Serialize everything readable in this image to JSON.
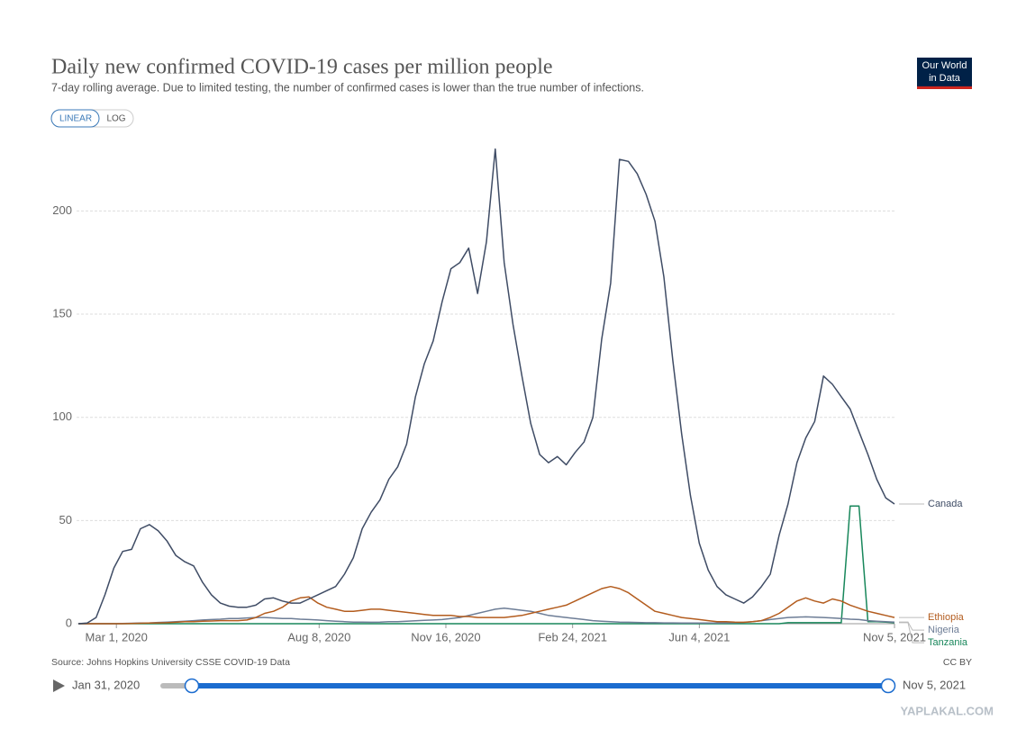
{
  "chart_data": {
    "type": "line",
    "title": "Daily new confirmed COVID-19 cases per million people",
    "subtitle": "7-day rolling average. Due to limited testing, the number of confirmed cases is lower than the true number of infections.",
    "scale_buttons": [
      "LINEAR",
      "LOG"
    ],
    "active_scale": "LINEAR",
    "logo": [
      "Our World",
      "in Data"
    ],
    "source": "Source: Johns Hopkins University CSSE COVID-19 Data",
    "license": "CC BY",
    "time_range": [
      "Jan 31, 2020",
      "Nov 5, 2021"
    ],
    "watermark": "YAPLAKAL.COM",
    "grid": true,
    "legend": "right",
    "xlim": [
      "2020-01-31",
      "2021-11-05"
    ],
    "xticks": [
      {
        "value": "2020-03-01",
        "label": "Mar 1, 2020"
      },
      {
        "value": "2020-08-08",
        "label": "Aug 8, 2020"
      },
      {
        "value": "2020-11-16",
        "label": "Nov 16, 2020"
      },
      {
        "value": "2021-02-24",
        "label": "Feb 24, 2021"
      },
      {
        "value": "2021-06-04",
        "label": "Jun 4, 2021"
      },
      {
        "value": "2021-11-05",
        "label": "Nov 5, 2021"
      }
    ],
    "ylim": [
      0,
      232
    ],
    "yticks": [
      0,
      50,
      100,
      150,
      200
    ],
    "x": [
      "2020-01-31",
      "2020-02-07",
      "2020-02-14",
      "2020-02-21",
      "2020-02-28",
      "2020-03-06",
      "2020-03-13",
      "2020-03-20",
      "2020-03-27",
      "2020-04-03",
      "2020-04-10",
      "2020-04-17",
      "2020-04-24",
      "2020-05-01",
      "2020-05-08",
      "2020-05-15",
      "2020-05-22",
      "2020-05-29",
      "2020-06-05",
      "2020-06-12",
      "2020-06-19",
      "2020-06-26",
      "2020-07-03",
      "2020-07-10",
      "2020-07-17",
      "2020-07-24",
      "2020-07-31",
      "2020-08-07",
      "2020-08-14",
      "2020-08-21",
      "2020-08-28",
      "2020-09-04",
      "2020-09-11",
      "2020-09-18",
      "2020-09-25",
      "2020-10-02",
      "2020-10-09",
      "2020-10-16",
      "2020-10-23",
      "2020-10-30",
      "2020-11-06",
      "2020-11-13",
      "2020-11-20",
      "2020-11-27",
      "2020-12-04",
      "2020-12-11",
      "2020-12-18",
      "2020-12-25",
      "2021-01-01",
      "2021-01-08",
      "2021-01-15",
      "2021-01-22",
      "2021-01-29",
      "2021-02-05",
      "2021-02-12",
      "2021-02-19",
      "2021-02-26",
      "2021-03-05",
      "2021-03-12",
      "2021-03-19",
      "2021-03-26",
      "2021-04-02",
      "2021-04-09",
      "2021-04-16",
      "2021-04-23",
      "2021-04-30",
      "2021-05-07",
      "2021-05-14",
      "2021-05-21",
      "2021-05-28",
      "2021-06-04",
      "2021-06-11",
      "2021-06-18",
      "2021-06-25",
      "2021-07-02",
      "2021-07-09",
      "2021-07-16",
      "2021-07-23",
      "2021-07-30",
      "2021-08-06",
      "2021-08-13",
      "2021-08-20",
      "2021-08-27",
      "2021-09-03",
      "2021-09-10",
      "2021-09-17",
      "2021-09-24",
      "2021-10-01",
      "2021-10-08",
      "2021-10-15",
      "2021-10-22",
      "2021-10-29",
      "2021-11-05"
    ],
    "series": [
      {
        "name": "Canada",
        "color": "#3f4c65",
        "values": [
          0,
          0.3,
          3,
          14,
          27,
          35,
          36,
          46,
          48,
          45,
          40,
          33,
          30,
          28,
          20,
          14,
          10,
          8.5,
          8,
          8,
          9,
          12,
          12.5,
          11,
          10,
          10,
          12,
          14,
          16,
          18,
          24,
          32,
          46,
          54,
          60,
          70,
          76,
          87,
          110,
          126,
          137,
          156,
          172,
          175,
          182,
          160,
          185,
          230,
          175,
          145,
          120,
          97,
          82,
          78,
          81,
          77,
          83,
          88,
          100,
          138,
          165,
          225,
          224,
          218,
          208,
          195,
          168,
          128,
          92,
          62,
          39,
          26,
          18,
          14,
          12,
          10,
          13,
          18,
          24,
          43,
          58,
          78,
          90,
          98,
          120,
          116,
          110,
          104,
          93,
          82,
          70,
          61,
          58
        ]
      },
      {
        "name": "Ethiopia",
        "color": "#b35c1e",
        "values": [
          0,
          0,
          0,
          0,
          0,
          0,
          0.1,
          0.2,
          0.3,
          0.4,
          0.5,
          0.7,
          1,
          1,
          1.2,
          1.3,
          1.5,
          1.5,
          1.5,
          1.8,
          3,
          5,
          6,
          8,
          11,
          12.5,
          13,
          10,
          8,
          7,
          6,
          6,
          6.5,
          7,
          7,
          6.5,
          6,
          5.5,
          5,
          4.5,
          4,
          4,
          4,
          3.5,
          3.5,
          3,
          3,
          3,
          3,
          3.5,
          4,
          5,
          6,
          7,
          8,
          9,
          11,
          13,
          15,
          17,
          18,
          17,
          15,
          12,
          9,
          6,
          5,
          4,
          3,
          2.5,
          2,
          1.5,
          1,
          1,
          0.8,
          0.7,
          1,
          1.5,
          3,
          5,
          8,
          11,
          12.5,
          11,
          10,
          12,
          11,
          9,
          7.5,
          6,
          5,
          4,
          3
        ]
      },
      {
        "name": "Nigeria",
        "color": "#6d7d96",
        "values": [
          0,
          0,
          0,
          0,
          0,
          0.1,
          0.2,
          0.3,
          0.4,
          0.6,
          0.8,
          1,
          1.2,
          1.5,
          1.8,
          2,
          2.2,
          2.5,
          2.5,
          2.8,
          3,
          3,
          2.8,
          2.5,
          2.5,
          2.2,
          2,
          1.8,
          1.5,
          1.2,
          1,
          0.8,
          0.8,
          0.7,
          0.8,
          1,
          1,
          1.2,
          1.4,
          1.6,
          1.8,
          2,
          2.5,
          3,
          4,
          5,
          6,
          7,
          7.5,
          7,
          6.5,
          6,
          5,
          4,
          3.5,
          3,
          2.5,
          2,
          1.5,
          1.2,
          1,
          0.8,
          0.7,
          0.6,
          0.5,
          0.5,
          0.4,
          0.4,
          0.3,
          0.3,
          0.3,
          0.3,
          0.3,
          0.4,
          0.5,
          0.6,
          1,
          1.5,
          2,
          2.5,
          3,
          3.2,
          3.3,
          3.2,
          3,
          2.8,
          2.5,
          2.2,
          2,
          1.5,
          1.2,
          1,
          0.8
        ]
      },
      {
        "name": "Tanzania",
        "color": "#18875b",
        "values": [
          0,
          0,
          0,
          0,
          0,
          0,
          0,
          0,
          0,
          0,
          0,
          0,
          0,
          0,
          0,
          0,
          0,
          0,
          0,
          0,
          0,
          0,
          0,
          0,
          0,
          0,
          0,
          0,
          0,
          0,
          0,
          0,
          0,
          0,
          0,
          0,
          0,
          0,
          0,
          0,
          0,
          0,
          0,
          0,
          0,
          0,
          0,
          0,
          0,
          0,
          0,
          0,
          0,
          0,
          0,
          0,
          0,
          0,
          0,
          0,
          0,
          0,
          0,
          0,
          0,
          0,
          0,
          0,
          0,
          0,
          0,
          0,
          0,
          0,
          0,
          0,
          0,
          0,
          0,
          0,
          0.5,
          0.5,
          0.5,
          0.5,
          0.5,
          0.5,
          0.5,
          57,
          57,
          1,
          1,
          0.8,
          0.5
        ]
      }
    ]
  }
}
